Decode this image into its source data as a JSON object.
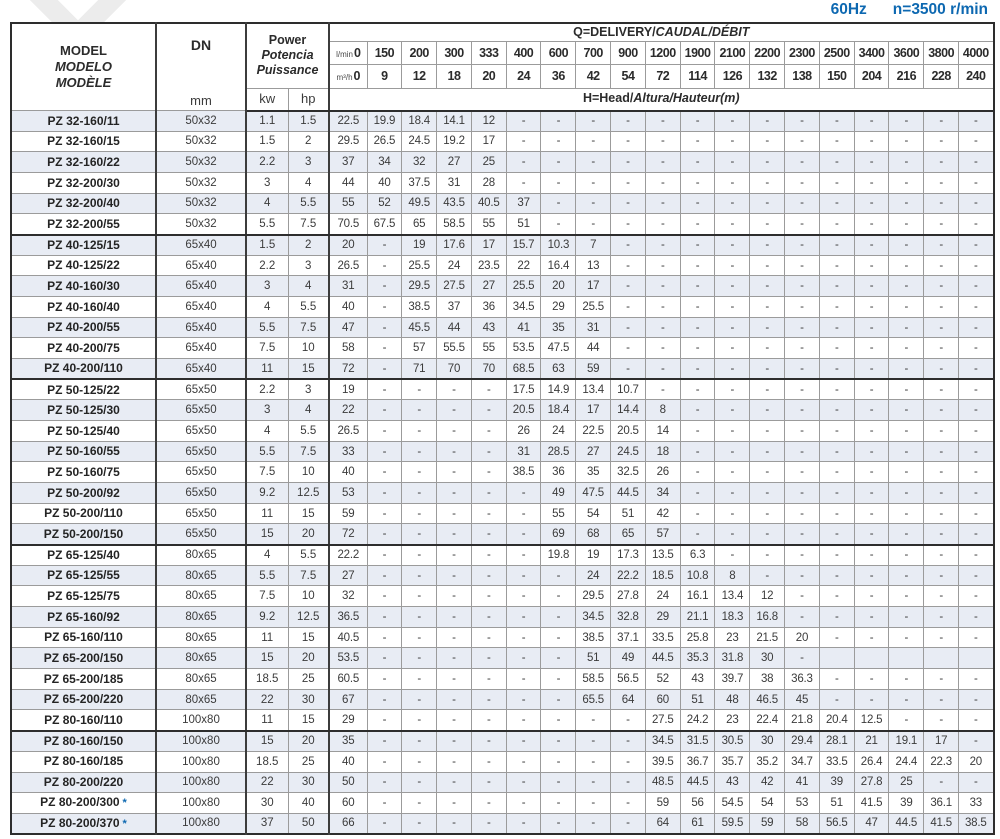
{
  "page": {
    "frequency": "60Hz",
    "speed": "n=3500 r/min"
  },
  "table": {
    "header": {
      "model_l1": "MODEL",
      "model_l2": "MODELO",
      "model_l3": "MODÈLE",
      "dn_label": "DN",
      "dn_unit": "mm",
      "power_l1": "Power",
      "power_l2": "Potencia",
      "power_l3": "Puissance",
      "kw_label": "kw",
      "hp_label": "hp",
      "q_title_plain": "Q=DELIVERY/",
      "q_title_italic": "CAUDAL/DÉBIT",
      "head_plain": "H=Head/",
      "head_italic": "Altura/Hauteur(m)",
      "lmin_label": "l/min",
      "m3h_label": "m³/h",
      "lmin_values": [
        "0",
        "150",
        "200",
        "300",
        "333",
        "400",
        "600",
        "700",
        "900",
        "1200",
        "1900",
        "2100",
        "2200",
        "2300",
        "2500",
        "3400",
        "3600",
        "3800",
        "4000"
      ],
      "m3h_values": [
        "0",
        "9",
        "12",
        "18",
        "20",
        "24",
        "36",
        "42",
        "54",
        "72",
        "114",
        "126",
        "132",
        "138",
        "150",
        "204",
        "216",
        "228",
        "240"
      ]
    },
    "rows": [
      {
        "model": "PZ 32-160/11",
        "star": false,
        "dn": "50x32",
        "kw": "1.1",
        "hp": "1.5",
        "group_end": false,
        "h": [
          "22.5",
          "19.9",
          "18.4",
          "14.1",
          "12",
          "-",
          "-",
          "-",
          "-",
          "-",
          "-",
          "-",
          "-",
          "-",
          "-",
          "-",
          "-",
          "-",
          "-"
        ]
      },
      {
        "model": "PZ 32-160/15",
        "star": false,
        "dn": "50x32",
        "kw": "1.5",
        "hp": "2",
        "group_end": false,
        "h": [
          "29.5",
          "26.5",
          "24.5",
          "19.2",
          "17",
          "-",
          "-",
          "-",
          "-",
          "-",
          "-",
          "-",
          "-",
          "-",
          "-",
          "-",
          "-",
          "-",
          "-"
        ]
      },
      {
        "model": "PZ 32-160/22",
        "star": false,
        "dn": "50x32",
        "kw": "2.2",
        "hp": "3",
        "group_end": false,
        "h": [
          "37",
          "34",
          "32",
          "27",
          "25",
          "-",
          "-",
          "-",
          "-",
          "-",
          "-",
          "-",
          "-",
          "-",
          "-",
          "-",
          "-",
          "-",
          "-"
        ]
      },
      {
        "model": "PZ 32-200/30",
        "star": false,
        "dn": "50x32",
        "kw": "3",
        "hp": "4",
        "group_end": false,
        "h": [
          "44",
          "40",
          "37.5",
          "31",
          "28",
          "-",
          "-",
          "-",
          "-",
          "-",
          "-",
          "-",
          "-",
          "-",
          "-",
          "-",
          "-",
          "-",
          "-"
        ]
      },
      {
        "model": "PZ 32-200/40",
        "star": false,
        "dn": "50x32",
        "kw": "4",
        "hp": "5.5",
        "group_end": false,
        "h": [
          "55",
          "52",
          "49.5",
          "43.5",
          "40.5",
          "37",
          "-",
          "-",
          "-",
          "-",
          "-",
          "-",
          "-",
          "-",
          "-",
          "-",
          "-",
          "-",
          "-"
        ]
      },
      {
        "model": "PZ 32-200/55",
        "star": false,
        "dn": "50x32",
        "kw": "5.5",
        "hp": "7.5",
        "group_end": true,
        "h": [
          "70.5",
          "67.5",
          "65",
          "58.5",
          "55",
          "51",
          "-",
          "-",
          "-",
          "-",
          "-",
          "-",
          "-",
          "-",
          "-",
          "-",
          "-",
          "-",
          "-"
        ]
      },
      {
        "model": "PZ 40-125/15",
        "star": false,
        "dn": "65x40",
        "kw": "1.5",
        "hp": "2",
        "group_end": false,
        "h": [
          "20",
          "-",
          "19",
          "17.6",
          "17",
          "15.7",
          "10.3",
          "7",
          "-",
          "-",
          "-",
          "-",
          "-",
          "-",
          "-",
          "-",
          "-",
          "-",
          "-"
        ]
      },
      {
        "model": "PZ 40-125/22",
        "star": false,
        "dn": "65x40",
        "kw": "2.2",
        "hp": "3",
        "group_end": false,
        "h": [
          "26.5",
          "-",
          "25.5",
          "24",
          "23.5",
          "22",
          "16.4",
          "13",
          "-",
          "-",
          "-",
          "-",
          "-",
          "-",
          "-",
          "-",
          "-",
          "-",
          "-"
        ]
      },
      {
        "model": "PZ 40-160/30",
        "star": false,
        "dn": "65x40",
        "kw": "3",
        "hp": "4",
        "group_end": false,
        "h": [
          "31",
          "-",
          "29.5",
          "27.5",
          "27",
          "25.5",
          "20",
          "17",
          "-",
          "-",
          "-",
          "-",
          "-",
          "-",
          "-",
          "-",
          "-",
          "-",
          "-"
        ]
      },
      {
        "model": "PZ 40-160/40",
        "star": false,
        "dn": "65x40",
        "kw": "4",
        "hp": "5.5",
        "group_end": false,
        "h": [
          "40",
          "-",
          "38.5",
          "37",
          "36",
          "34.5",
          "29",
          "25.5",
          "-",
          "-",
          "-",
          "-",
          "-",
          "-",
          "-",
          "-",
          "-",
          "-",
          "-"
        ]
      },
      {
        "model": "PZ 40-200/55",
        "star": false,
        "dn": "65x40",
        "kw": "5.5",
        "hp": "7.5",
        "group_end": false,
        "h": [
          "47",
          "-",
          "45.5",
          "44",
          "43",
          "41",
          "35",
          "31",
          "-",
          "-",
          "-",
          "-",
          "-",
          "-",
          "-",
          "-",
          "-",
          "-",
          "-"
        ]
      },
      {
        "model": "PZ 40-200/75",
        "star": false,
        "dn": "65x40",
        "kw": "7.5",
        "hp": "10",
        "group_end": false,
        "h": [
          "58",
          "-",
          "57",
          "55.5",
          "55",
          "53.5",
          "47.5",
          "44",
          "-",
          "-",
          "-",
          "-",
          "-",
          "-",
          "-",
          "-",
          "-",
          "-",
          "-"
        ]
      },
      {
        "model": "PZ 40-200/110",
        "star": false,
        "dn": "65x40",
        "kw": "11",
        "hp": "15",
        "group_end": true,
        "h": [
          "72",
          "-",
          "71",
          "70",
          "70",
          "68.5",
          "63",
          "59",
          "-",
          "-",
          "-",
          "-",
          "-",
          "-",
          "-",
          "-",
          "-",
          "-",
          "-"
        ]
      },
      {
        "model": "PZ 50-125/22",
        "star": false,
        "dn": "65x50",
        "kw": "2.2",
        "hp": "3",
        "group_end": false,
        "h": [
          "19",
          "-",
          "-",
          "-",
          "-",
          "17.5",
          "14.9",
          "13.4",
          "10.7",
          "-",
          "-",
          "-",
          "-",
          "-",
          "-",
          "-",
          "-",
          "-",
          "-"
        ]
      },
      {
        "model": "PZ 50-125/30",
        "star": false,
        "dn": "65x50",
        "kw": "3",
        "hp": "4",
        "group_end": false,
        "h": [
          "22",
          "-",
          "-",
          "-",
          "-",
          "20.5",
          "18.4",
          "17",
          "14.4",
          "8",
          "-",
          "-",
          "-",
          "-",
          "-",
          "-",
          "-",
          "-",
          "-"
        ]
      },
      {
        "model": "PZ 50-125/40",
        "star": false,
        "dn": "65x50",
        "kw": "4",
        "hp": "5.5",
        "group_end": false,
        "h": [
          "26.5",
          "-",
          "-",
          "-",
          "-",
          "26",
          "24",
          "22.5",
          "20.5",
          "14",
          "-",
          "-",
          "-",
          "-",
          "-",
          "-",
          "-",
          "-",
          "-"
        ]
      },
      {
        "model": "PZ 50-160/55",
        "star": false,
        "dn": "65x50",
        "kw": "5.5",
        "hp": "7.5",
        "group_end": false,
        "h": [
          "33",
          "-",
          "-",
          "-",
          "-",
          "31",
          "28.5",
          "27",
          "24.5",
          "18",
          "-",
          "-",
          "-",
          "-",
          "-",
          "-",
          "-",
          "-",
          "-"
        ]
      },
      {
        "model": "PZ 50-160/75",
        "star": false,
        "dn": "65x50",
        "kw": "7.5",
        "hp": "10",
        "group_end": false,
        "h": [
          "40",
          "-",
          "-",
          "-",
          "-",
          "38.5",
          "36",
          "35",
          "32.5",
          "26",
          "-",
          "-",
          "-",
          "-",
          "-",
          "-",
          "-",
          "-",
          "-"
        ]
      },
      {
        "model": "PZ 50-200/92",
        "star": false,
        "dn": "65x50",
        "kw": "9.2",
        "hp": "12.5",
        "group_end": false,
        "h": [
          "53",
          "-",
          "-",
          "-",
          "-",
          "-",
          "49",
          "47.5",
          "44.5",
          "34",
          "-",
          "-",
          "-",
          "-",
          "-",
          "-",
          "-",
          "-",
          "-"
        ]
      },
      {
        "model": "PZ 50-200/110",
        "star": false,
        "dn": "65x50",
        "kw": "11",
        "hp": "15",
        "group_end": false,
        "h": [
          "59",
          "-",
          "-",
          "-",
          "-",
          "-",
          "55",
          "54",
          "51",
          "42",
          "-",
          "-",
          "-",
          "-",
          "-",
          "-",
          "-",
          "-",
          "-"
        ]
      },
      {
        "model": "PZ 50-200/150",
        "star": false,
        "dn": "65x50",
        "kw": "15",
        "hp": "20",
        "group_end": true,
        "h": [
          "72",
          "-",
          "-",
          "-",
          "-",
          "-",
          "69",
          "68",
          "65",
          "57",
          "-",
          "-",
          "-",
          "-",
          "-",
          "-",
          "-",
          "-",
          "-"
        ]
      },
      {
        "model": "PZ 65-125/40",
        "star": false,
        "dn": "80x65",
        "kw": "4",
        "hp": "5.5",
        "group_end": false,
        "h": [
          "22.2",
          "-",
          "-",
          "-",
          "-",
          "-",
          "19.8",
          "19",
          "17.3",
          "13.5",
          "6.3",
          "-",
          "-",
          "-",
          "-",
          "-",
          "-",
          "-",
          "-"
        ]
      },
      {
        "model": "PZ 65-125/55",
        "star": false,
        "dn": "80x65",
        "kw": "5.5",
        "hp": "7.5",
        "group_end": false,
        "h": [
          "27",
          "-",
          "-",
          "-",
          "-",
          "-",
          "-",
          "24",
          "22.2",
          "18.5",
          "10.8",
          "8",
          "-",
          "-",
          "-",
          "-",
          "-",
          "-",
          "-"
        ]
      },
      {
        "model": "PZ 65-125/75",
        "star": false,
        "dn": "80x65",
        "kw": "7.5",
        "hp": "10",
        "group_end": false,
        "h": [
          "32",
          "-",
          "-",
          "-",
          "-",
          "-",
          "-",
          "29.5",
          "27.8",
          "24",
          "16.1",
          "13.4",
          "12",
          "-",
          "-",
          "-",
          "-",
          "-",
          "-"
        ]
      },
      {
        "model": "PZ 65-160/92",
        "star": false,
        "dn": "80x65",
        "kw": "9.2",
        "hp": "12.5",
        "group_end": false,
        "h": [
          "36.5",
          "-",
          "-",
          "-",
          "-",
          "-",
          "-",
          "34.5",
          "32.8",
          "29",
          "21.1",
          "18.3",
          "16.8",
          "-",
          "-",
          "-",
          "-",
          "-",
          "-"
        ]
      },
      {
        "model": "PZ 65-160/110",
        "star": false,
        "dn": "80x65",
        "kw": "11",
        "hp": "15",
        "group_end": false,
        "h": [
          "40.5",
          "-",
          "-",
          "-",
          "-",
          "-",
          "-",
          "38.5",
          "37.1",
          "33.5",
          "25.8",
          "23",
          "21.5",
          "20",
          "-",
          "-",
          "-",
          "-",
          "-"
        ]
      },
      {
        "model": "PZ 65-200/150",
        "star": false,
        "dn": "80x65",
        "kw": "15",
        "hp": "20",
        "group_end": false,
        "h": [
          "53.5",
          "-",
          "-",
          "-",
          "-",
          "-",
          "-",
          "51",
          "49",
          "44.5",
          "35.3",
          "31.8",
          "30",
          "-",
          "",
          "",
          "",
          "",
          ""
        ]
      },
      {
        "model": "PZ 65-200/185",
        "star": false,
        "dn": "80x65",
        "kw": "18.5",
        "hp": "25",
        "group_end": false,
        "h": [
          "60.5",
          "-",
          "-",
          "-",
          "-",
          "-",
          "-",
          "58.5",
          "56.5",
          "52",
          "43",
          "39.7",
          "38",
          "36.3",
          "-",
          "-",
          "-",
          "-",
          "-"
        ]
      },
      {
        "model": "PZ 65-200/220",
        "star": false,
        "dn": "80x65",
        "kw": "22",
        "hp": "30",
        "group_end": false,
        "h": [
          "67",
          "-",
          "-",
          "-",
          "-",
          "-",
          "-",
          "65.5",
          "64",
          "60",
          "51",
          "48",
          "46.5",
          "45",
          "-",
          "-",
          "-",
          "-",
          "-"
        ]
      },
      {
        "model": "PZ 80-160/110",
        "star": false,
        "dn": "100x80",
        "kw": "11",
        "hp": "15",
        "group_end": true,
        "h": [
          "29",
          "-",
          "-",
          "-",
          "-",
          "-",
          "-",
          "-",
          "-",
          "27.5",
          "24.2",
          "23",
          "22.4",
          "21.8",
          "20.4",
          "12.5",
          "-",
          "-",
          "-"
        ]
      },
      {
        "model": "PZ 80-160/150",
        "star": false,
        "dn": "100x80",
        "kw": "15",
        "hp": "20",
        "group_end": false,
        "h": [
          "35",
          "-",
          "-",
          "-",
          "-",
          "-",
          "-",
          "-",
          "-",
          "34.5",
          "31.5",
          "30.5",
          "30",
          "29.4",
          "28.1",
          "21",
          "19.1",
          "17",
          "-"
        ]
      },
      {
        "model": "PZ 80-160/185",
        "star": false,
        "dn": "100x80",
        "kw": "18.5",
        "hp": "25",
        "group_end": false,
        "h": [
          "40",
          "-",
          "-",
          "-",
          "-",
          "-",
          "-",
          "-",
          "-",
          "39.5",
          "36.7",
          "35.7",
          "35.2",
          "34.7",
          "33.5",
          "26.4",
          "24.4",
          "22.3",
          "20"
        ]
      },
      {
        "model": "PZ 80-200/220",
        "star": false,
        "dn": "100x80",
        "kw": "22",
        "hp": "30",
        "group_end": false,
        "h": [
          "50",
          "-",
          "-",
          "-",
          "-",
          "-",
          "-",
          "-",
          "-",
          "48.5",
          "44.5",
          "43",
          "42",
          "41",
          "39",
          "27.8",
          "25",
          "-",
          "-"
        ]
      },
      {
        "model": "PZ 80-200/300",
        "star": true,
        "dn": "100x80",
        "kw": "30",
        "hp": "40",
        "group_end": false,
        "h": [
          "60",
          "-",
          "-",
          "-",
          "-",
          "-",
          "-",
          "-",
          "-",
          "59",
          "56",
          "54.5",
          "54",
          "53",
          "51",
          "41.5",
          "39",
          "36.1",
          "33"
        ]
      },
      {
        "model": "PZ 80-200/370",
        "star": true,
        "dn": "100x80",
        "kw": "37",
        "hp": "50",
        "group_end": false,
        "h": [
          "66",
          "-",
          "-",
          "-",
          "-",
          "-",
          "-",
          "-",
          "-",
          "64",
          "61",
          "59.5",
          "59",
          "58",
          "56.5",
          "47",
          "44.5",
          "41.5",
          "38.5"
        ]
      }
    ]
  }
}
